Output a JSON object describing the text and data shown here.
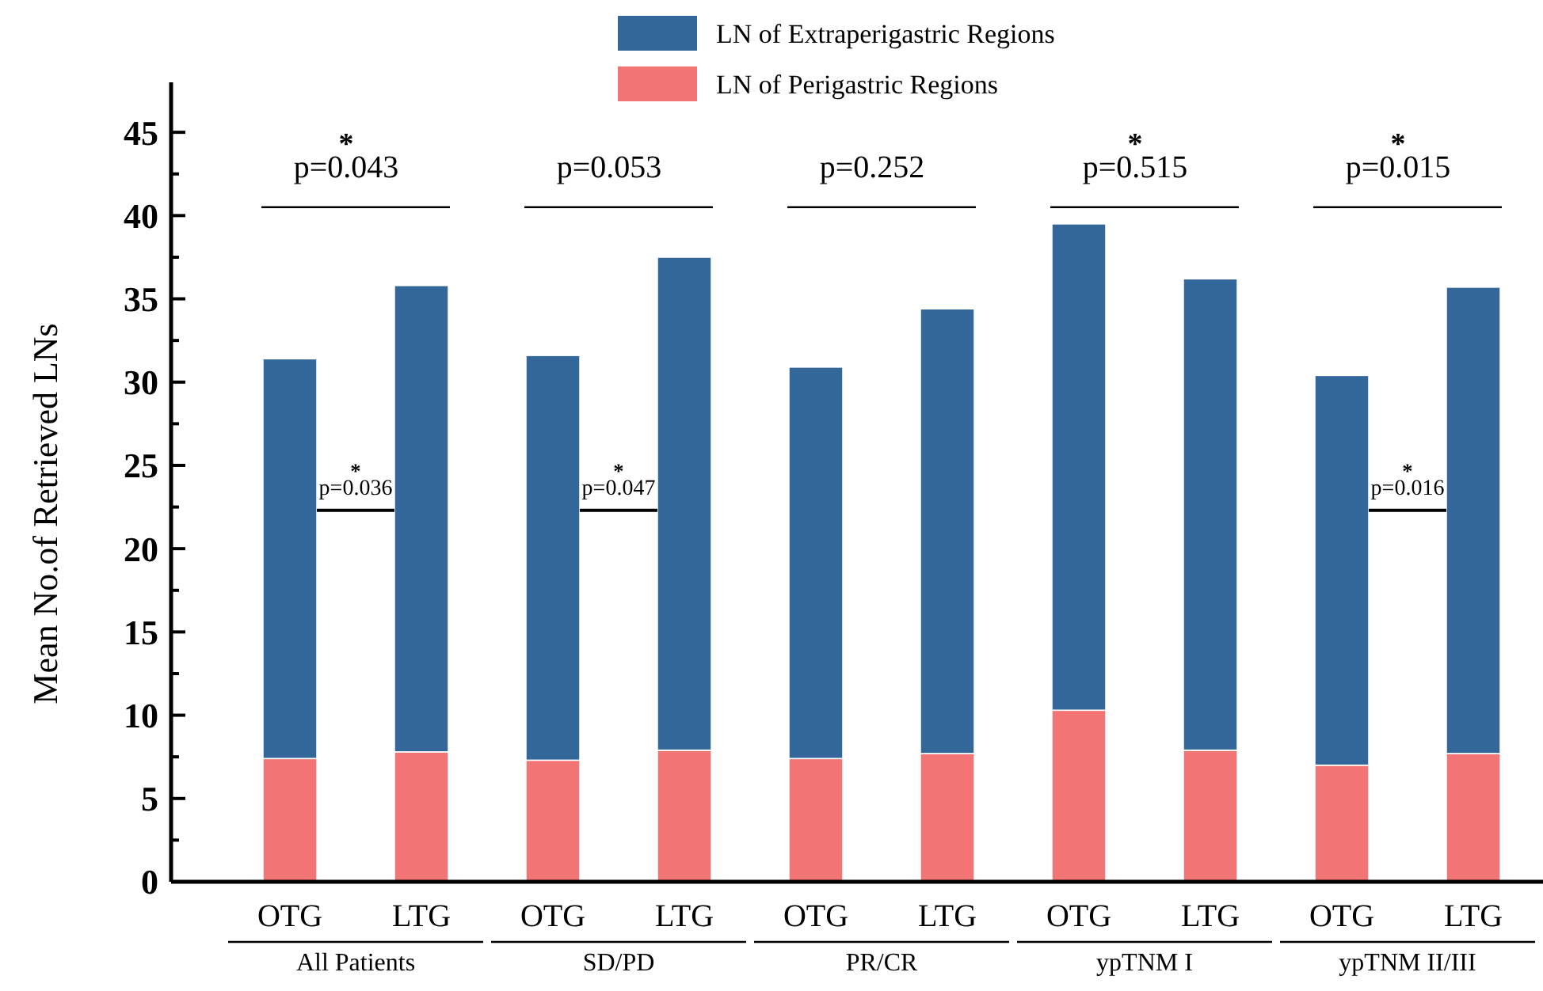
{
  "chart_data": {
    "type": "bar",
    "stacked": true,
    "ylabel": "Mean No.of Retrieved LNs",
    "categories": [
      "OTG",
      "LTG",
      "OTG",
      "LTG",
      "OTG",
      "LTG",
      "OTG",
      "LTG",
      "OTG",
      "LTG"
    ],
    "series": [
      {
        "name": "LN of Perigastric Regions",
        "color": "#f27474",
        "values": [
          7.4,
          7.8,
          7.3,
          7.9,
          7.4,
          7.7,
          10.3,
          7.9,
          7.0,
          7.7
        ]
      },
      {
        "name": "LN of Extraperigastric Regions",
        "color": "#336699",
        "values": [
          24.0,
          28.0,
          24.3,
          29.6,
          23.5,
          26.7,
          29.2,
          28.3,
          23.4,
          28.0
        ]
      }
    ],
    "ylim": [
      0,
      48
    ],
    "yticks": [
      0,
      {
        "value": 2.5,
        "label": null
      },
      5,
      {
        "value": 7.5,
        "label": null
      },
      10,
      {
        "value": 12.5,
        "label": null
      },
      15,
      {
        "value": 17.5,
        "label": null
      },
      20,
      {
        "value": 22.5,
        "label": null
      },
      25,
      {
        "value": 27.5,
        "label": null
      },
      30,
      {
        "value": 32.5,
        "label": null
      },
      35,
      {
        "value": 37.5,
        "label": null
      },
      40,
      {
        "value": 42.5,
        "label": null
      },
      45
    ],
    "legend": "top",
    "grid": false,
    "annotations": [
      "All Patients",
      "SD/PD",
      "PR/CR",
      "ypTNM I",
      "ypTNM II/III",
      "*\np=0.043",
      "p=0.053",
      "p=0.252",
      "*\np=0.515",
      "*\np=0.015",
      "*\np=0.036",
      "*\np=0.047",
      "*\np=0.016"
    ]
  }
}
